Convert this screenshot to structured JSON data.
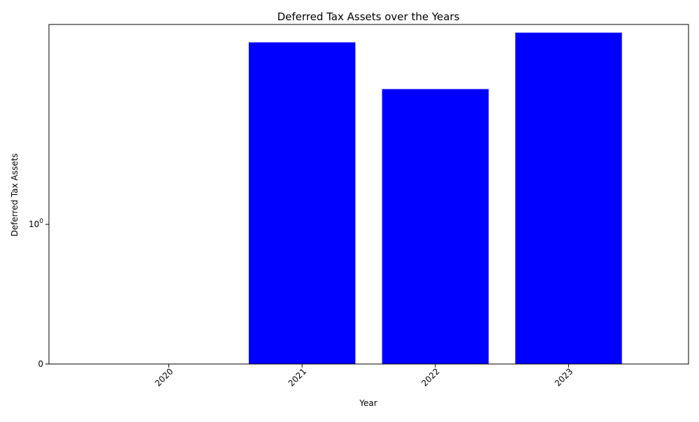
{
  "colors": {
    "bar": "#0000ff",
    "axis": "#000000",
    "background": "#ffffff"
  },
  "chart_data": {
    "type": "bar",
    "title": "Deferred Tax Assets over the Years",
    "xlabel": "Year",
    "ylabel": "Deferred Tax Assets",
    "categories": [
      "2020",
      "2021",
      "2022",
      "2023"
    ],
    "values": [
      0,
      20.1,
      9.3,
      23.6
    ],
    "yscale": "symlog",
    "ylim": [
      0,
      27
    ],
    "yticks": [
      {
        "value": 0,
        "label": "0"
      },
      {
        "value": 1,
        "label": "10",
        "exponent": "0"
      }
    ],
    "xtick_rotation": 45,
    "grid": false,
    "legend": "none"
  }
}
